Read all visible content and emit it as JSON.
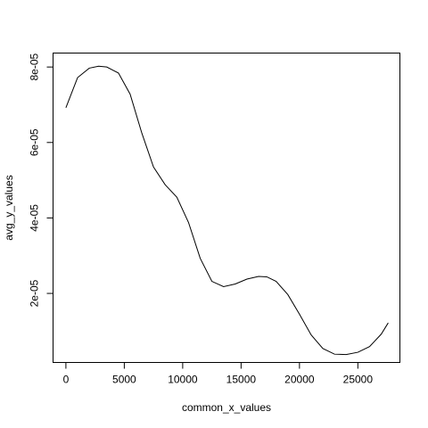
{
  "chart_data": {
    "type": "line",
    "title": "",
    "xlabel": "common_x_values",
    "ylabel": "avg_y_values",
    "xlim": [
      -1100,
      28600
    ],
    "ylim": [
      1.7e-06,
      8.37e-05
    ],
    "x_ticks": [
      0,
      5000,
      10000,
      15000,
      20000,
      25000
    ],
    "x_tick_labels": [
      "0",
      "5000",
      "10000",
      "15000",
      "20000",
      "25000"
    ],
    "y_ticks": [
      2e-05,
      4e-05,
      6e-05,
      8e-05
    ],
    "y_tick_labels": [
      "2e-05",
      "4e-05",
      "6e-05",
      "8e-05"
    ],
    "grid": false,
    "legend": "none",
    "series": [
      {
        "color": "#000000",
        "x": [
          0,
          1000,
          2000,
          2800,
          3500,
          4500,
          5500,
          6500,
          7500,
          8500,
          9500,
          10500,
          11500,
          12500,
          13500,
          14500,
          15500,
          16500,
          17200,
          18000,
          19000,
          20000,
          21000,
          22000,
          23000,
          24000,
          25000,
          26000,
          27000,
          27600
        ],
        "y": [
          6.92e-05,
          7.72e-05,
          7.97e-05,
          8.02e-05,
          8e-05,
          7.84e-05,
          7.28e-05,
          6.25e-05,
          5.35e-05,
          4.88e-05,
          4.55e-05,
          3.88e-05,
          2.93e-05,
          2.32e-05,
          2.18e-05,
          2.25e-05,
          2.38e-05,
          2.45e-05,
          2.44e-05,
          2.32e-05,
          1.97e-05,
          1.45e-05,
          9e-06,
          5.4e-06,
          3.9e-06,
          3.8e-06,
          4.4e-06,
          5.9e-06,
          9.2e-06,
          1.22e-05
        ]
      }
    ]
  }
}
